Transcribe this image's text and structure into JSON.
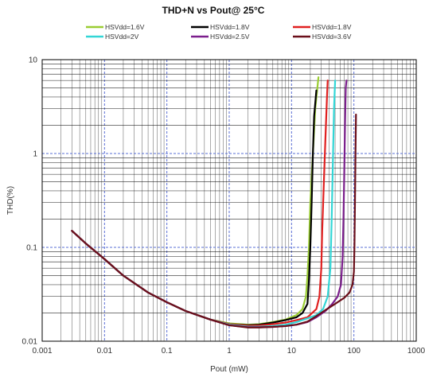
{
  "chart_data": {
    "type": "line",
    "title": "THD+N vs Pout@ 25°C",
    "xlabel": "Pout (mW)",
    "ylabel": "THD(%)",
    "x_scale": "log",
    "y_scale": "log",
    "xlim": [
      0.001,
      1000
    ],
    "ylim": [
      0.01,
      10
    ],
    "x_ticks": [
      "0.001",
      "0.01",
      "0.1",
      "1",
      "10",
      "100",
      "1000"
    ],
    "y_ticks": [
      "0.01",
      "0.1",
      "1",
      "10"
    ],
    "grid": true,
    "legend_position": "top",
    "series": [
      {
        "name": "HSVdd=1.6V",
        "color": "#9acd32",
        "points": [
          [
            0.003,
            0.15
          ],
          [
            0.005,
            0.11
          ],
          [
            0.01,
            0.075
          ],
          [
            0.02,
            0.05
          ],
          [
            0.05,
            0.033
          ],
          [
            0.1,
            0.026
          ],
          [
            0.2,
            0.021
          ],
          [
            0.5,
            0.017
          ],
          [
            1,
            0.0155
          ],
          [
            2,
            0.015
          ],
          [
            3,
            0.0152
          ],
          [
            5,
            0.016
          ],
          [
            8,
            0.017
          ],
          [
            12,
            0.019
          ],
          [
            15,
            0.022
          ],
          [
            17,
            0.03
          ],
          [
            18,
            0.05
          ],
          [
            19,
            0.1
          ],
          [
            20,
            0.3
          ],
          [
            22,
            1.0
          ],
          [
            24,
            3.0
          ],
          [
            27,
            6.5
          ]
        ]
      },
      {
        "name": "HSVdd=1.8V",
        "color": "#000000",
        "points": [
          [
            0.003,
            0.15
          ],
          [
            0.005,
            0.11
          ],
          [
            0.01,
            0.075
          ],
          [
            0.02,
            0.05
          ],
          [
            0.05,
            0.033
          ],
          [
            0.1,
            0.026
          ],
          [
            0.2,
            0.021
          ],
          [
            0.5,
            0.017
          ],
          [
            1,
            0.0152
          ],
          [
            2,
            0.0148
          ],
          [
            3,
            0.015
          ],
          [
            5,
            0.0158
          ],
          [
            8,
            0.0168
          ],
          [
            12,
            0.018
          ],
          [
            15,
            0.02
          ],
          [
            18,
            0.025
          ],
          [
            19,
            0.045
          ],
          [
            20,
            0.1
          ],
          [
            21,
            0.3
          ],
          [
            22,
            1.0
          ],
          [
            23,
            2.5
          ],
          [
            25,
            4.7
          ]
        ]
      },
      {
        "name": "HSVdd=1.8V",
        "color": "#e02020",
        "points": [
          [
            0.003,
            0.15
          ],
          [
            0.005,
            0.11
          ],
          [
            0.01,
            0.075
          ],
          [
            0.02,
            0.05
          ],
          [
            0.05,
            0.033
          ],
          [
            0.1,
            0.026
          ],
          [
            0.2,
            0.021
          ],
          [
            0.5,
            0.017
          ],
          [
            1,
            0.0152
          ],
          [
            2,
            0.0146
          ],
          [
            3,
            0.0147
          ],
          [
            5,
            0.0152
          ],
          [
            8,
            0.0158
          ],
          [
            12,
            0.0168
          ],
          [
            18,
            0.018
          ],
          [
            25,
            0.022
          ],
          [
            28,
            0.03
          ],
          [
            30,
            0.06
          ],
          [
            31,
            0.15
          ],
          [
            33,
            0.5
          ],
          [
            35,
            1.5
          ],
          [
            37,
            4.0
          ],
          [
            38,
            6.0
          ]
        ]
      },
      {
        "name": "HSVdd=2V",
        "color": "#33d6d6",
        "points": [
          [
            0.003,
            0.15
          ],
          [
            0.005,
            0.11
          ],
          [
            0.01,
            0.075
          ],
          [
            0.02,
            0.05
          ],
          [
            0.05,
            0.033
          ],
          [
            0.1,
            0.026
          ],
          [
            0.2,
            0.021
          ],
          [
            0.5,
            0.017
          ],
          [
            1,
            0.015
          ],
          [
            2,
            0.0143
          ],
          [
            3,
            0.0143
          ],
          [
            5,
            0.0145
          ],
          [
            8,
            0.015
          ],
          [
            12,
            0.016
          ],
          [
            18,
            0.0175
          ],
          [
            25,
            0.019
          ],
          [
            32,
            0.022
          ],
          [
            38,
            0.03
          ],
          [
            42,
            0.06
          ],
          [
            44,
            0.2
          ],
          [
            46,
            0.8
          ],
          [
            48,
            3.0
          ],
          [
            50,
            6.0
          ]
        ]
      },
      {
        "name": "HSVdd=2.5V",
        "color": "#7b1e8c",
        "points": [
          [
            0.003,
            0.15
          ],
          [
            0.005,
            0.11
          ],
          [
            0.01,
            0.075
          ],
          [
            0.02,
            0.05
          ],
          [
            0.05,
            0.033
          ],
          [
            0.1,
            0.026
          ],
          [
            0.2,
            0.021
          ],
          [
            0.5,
            0.017
          ],
          [
            1,
            0.0148
          ],
          [
            2,
            0.0141
          ],
          [
            3,
            0.0141
          ],
          [
            5,
            0.0142
          ],
          [
            8,
            0.0145
          ],
          [
            12,
            0.015
          ],
          [
            18,
            0.016
          ],
          [
            25,
            0.018
          ],
          [
            35,
            0.021
          ],
          [
            45,
            0.025
          ],
          [
            55,
            0.03
          ],
          [
            62,
            0.04
          ],
          [
            66,
            0.08
          ],
          [
            68,
            0.2
          ],
          [
            70,
            0.6
          ],
          [
            72,
            2.0
          ],
          [
            74,
            5.0
          ],
          [
            76,
            6.0
          ]
        ]
      },
      {
        "name": "HSVdd=3.6V",
        "color": "#6b0f1a",
        "points": [
          [
            0.003,
            0.15
          ],
          [
            0.005,
            0.11
          ],
          [
            0.01,
            0.075
          ],
          [
            0.02,
            0.05
          ],
          [
            0.05,
            0.033
          ],
          [
            0.1,
            0.026
          ],
          [
            0.2,
            0.021
          ],
          [
            0.5,
            0.017
          ],
          [
            1,
            0.0148
          ],
          [
            2,
            0.014
          ],
          [
            3,
            0.014
          ],
          [
            5,
            0.0142
          ],
          [
            8,
            0.0145
          ],
          [
            12,
            0.015
          ],
          [
            18,
            0.0162
          ],
          [
            25,
            0.0185
          ],
          [
            35,
            0.0215
          ],
          [
            50,
            0.025
          ],
          [
            70,
            0.029
          ],
          [
            85,
            0.033
          ],
          [
            95,
            0.04
          ],
          [
            100,
            0.055
          ],
          [
            102,
            0.1
          ],
          [
            104,
            0.3
          ],
          [
            106,
            1.0
          ],
          [
            108,
            2.6
          ]
        ]
      }
    ]
  }
}
